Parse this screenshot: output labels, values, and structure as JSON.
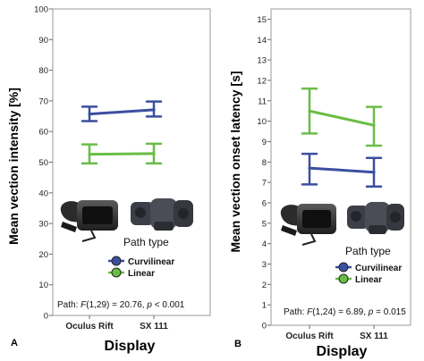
{
  "colors": {
    "curvilinear": "#3b4fa0",
    "linear": "#69bd45"
  },
  "chart_data": [
    {
      "panel": "A",
      "type": "line",
      "ylabel": "Mean vection intensity [%]",
      "xlabel": "Display",
      "ylim": [
        0,
        100
      ],
      "yticks": [
        "0",
        "10",
        "20",
        "30",
        "40",
        "50",
        "60",
        "70",
        "80",
        "90",
        "100"
      ],
      "categories": [
        "Oculus Rift",
        "SX 111"
      ],
      "series": [
        {
          "name": "Curvilinear",
          "values": [
            65.7,
            67.1
          ],
          "err_low": [
            63.4,
            64.9
          ],
          "err_high": [
            68.1,
            69.8
          ]
        },
        {
          "name": "Linear",
          "values": [
            52.6,
            52.8
          ],
          "err_low": [
            49.6,
            49.6
          ],
          "err_high": [
            55.8,
            56.0
          ]
        }
      ],
      "legend": {
        "title": "Path type",
        "position": "bottom-right"
      },
      "stat_text": {
        "pre": "Path: ",
        "F": "F",
        "dfs": "(1,29) = 20.76, ",
        "p": "p",
        "post": " < 0.001"
      }
    },
    {
      "panel": "B",
      "type": "line",
      "ylabel": "Mean vection onset latency [s]",
      "xlabel": "Display",
      "ylim": [
        0,
        15.5
      ],
      "yticks": [
        "0",
        "1",
        "2",
        "3",
        "4",
        "5",
        "6",
        "7",
        "8",
        "9",
        "10",
        "11",
        "12",
        "13",
        "14",
        "15"
      ],
      "categories": [
        "Oculus Rift",
        "SX 111"
      ],
      "series": [
        {
          "name": "Curvilinear",
          "values": [
            7.7,
            7.5
          ],
          "err_low": [
            6.9,
            6.8
          ],
          "err_high": [
            8.4,
            8.2
          ]
        },
        {
          "name": "Linear",
          "values": [
            10.5,
            9.8
          ],
          "err_low": [
            9.4,
            8.8
          ],
          "err_high": [
            11.6,
            10.7
          ]
        }
      ],
      "legend": {
        "title": "Path type",
        "position": "bottom-right"
      },
      "stat_text": {
        "pre": "Path: ",
        "F": "F",
        "dfs": "(1,24) = 6.89, ",
        "p": "p",
        "post": " = 0.015"
      }
    }
  ]
}
